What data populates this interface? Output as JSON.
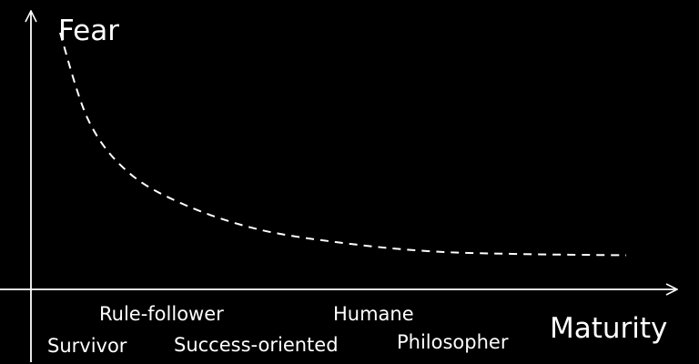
{
  "chart_data": {
    "type": "line",
    "title": "",
    "xlabel": "Maturity",
    "ylabel": "Fear",
    "grid": false,
    "legend": "none",
    "axis_ticks": false,
    "curve_style": "dashed",
    "colors": {
      "background": "#000000",
      "foreground": "#ffffff"
    },
    "x_categories": [
      "Survivor",
      "Rule-follower",
      "Success-oriented",
      "Humane",
      "Philosopher"
    ],
    "series": [
      {
        "values": [
          {
            "x": 0.0,
            "y": 0.94
          },
          {
            "x": 0.05,
            "y": 0.62
          },
          {
            "x": 0.12,
            "y": 0.43
          },
          {
            "x": 0.22,
            "y": 0.31
          },
          {
            "x": 0.35,
            "y": 0.22
          },
          {
            "x": 0.5,
            "y": 0.17
          },
          {
            "x": 0.65,
            "y": 0.14
          },
          {
            "x": 0.8,
            "y": 0.13
          },
          {
            "x": 1.0,
            "y": 0.125
          }
        ]
      }
    ]
  }
}
